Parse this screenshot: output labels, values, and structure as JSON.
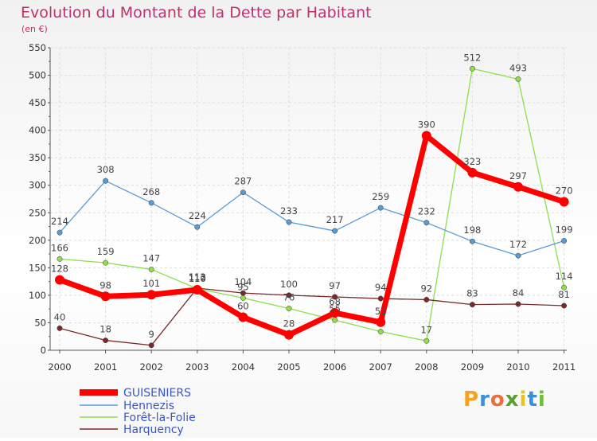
{
  "chart_data": {
    "type": "line",
    "title": "Evolution du Montant de la Dette par Habitant",
    "subtitle": "(en €)",
    "xlabel": "",
    "ylabel": "",
    "categories": [
      "2000",
      "2001",
      "2002",
      "2003",
      "2004",
      "2005",
      "2006",
      "2007",
      "2008",
      "2009",
      "2010",
      "2011"
    ],
    "ylim": [
      0,
      550
    ],
    "yticks": [
      0,
      50,
      100,
      150,
      200,
      250,
      300,
      350,
      400,
      450,
      500,
      550
    ],
    "grid": true,
    "series": [
      {
        "name": "GUISENIERS",
        "color": "#ff0000",
        "values": [
          128,
          98,
          101,
          110,
          60,
          28,
          68,
          51,
          390,
          323,
          297,
          270
        ]
      },
      {
        "name": "Hennezis",
        "color": "#5b9bd5",
        "values": [
          214,
          308,
          268,
          224,
          287,
          233,
          217,
          259,
          232,
          198,
          172,
          199
        ]
      },
      {
        "name": "Forêt-la-Folie",
        "color": "#8ede4f",
        "values": [
          166,
          159,
          147,
          112,
          95,
          76,
          55,
          34,
          17,
          512,
          493,
          114
        ]
      },
      {
        "name": "Harquency",
        "color": "#7a2a2a",
        "values": [
          40,
          18,
          9,
          113,
          104,
          100,
          97,
          94,
          92,
          83,
          84,
          81
        ]
      }
    ],
    "data_labels": [
      [
        "128",
        "98",
        "101",
        "110",
        "60",
        "28",
        "68",
        "51",
        "390",
        "323",
        "297",
        "270"
      ],
      [
        "214",
        "308",
        "268",
        "224",
        "287",
        "233",
        "217",
        "259",
        "232",
        "198",
        "172",
        "199"
      ],
      [
        "166",
        "159",
        "147",
        "112",
        "95",
        "76",
        "55",
        "",
        "17",
        "512",
        "493",
        "114"
      ],
      [
        "40",
        "18",
        "9",
        "113",
        "104",
        "100",
        "97",
        "94",
        "92",
        "83",
        "84",
        "81"
      ]
    ]
  },
  "logo": {
    "letters": [
      "P",
      "r",
      "o",
      "x",
      "i",
      "t",
      "i"
    ],
    "colors": [
      "#f7a21b",
      "#3b8fd9",
      "#f26b3a",
      "#5aa02c",
      "#e8c31e",
      "#3b8fd9",
      "#6bbf3a"
    ]
  }
}
